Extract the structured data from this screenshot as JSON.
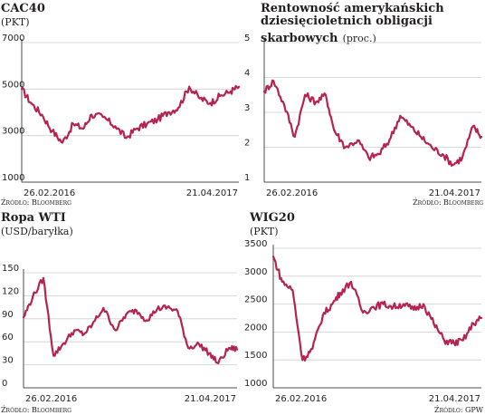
{
  "chart_data": [
    {
      "id": "cac40",
      "type": "line",
      "title": "CAC40",
      "subtitle": "(PKT)",
      "source": "Źródło: Bloomberg",
      "ylim": [
        1000,
        7000
      ],
      "yticks": [
        1000,
        3000,
        5000,
        7000
      ],
      "xlabels": [
        "26.02.2016",
        "21.04.2017"
      ],
      "grid": true,
      "color": "#b5234e",
      "x": [
        "2016-02-26",
        "2016-03-15",
        "2016-04-05",
        "2016-04-25",
        "2016-05-15",
        "2016-06-05",
        "2016-06-24",
        "2016-07-10",
        "2016-08-01",
        "2016-08-25",
        "2016-09-15",
        "2016-10-05",
        "2016-10-25",
        "2016-11-15",
        "2016-12-05",
        "2016-12-25",
        "2017-01-15",
        "2017-02-05",
        "2017-02-25",
        "2017-03-15",
        "2017-04-05",
        "2017-04-21"
      ],
      "values": [
        5000,
        4400,
        3900,
        3200,
        2700,
        3500,
        3300,
        3900,
        3800,
        3400,
        2900,
        3300,
        3500,
        3700,
        4000,
        4200,
        5100,
        4600,
        4400,
        4700,
        4900,
        5100
      ]
    },
    {
      "id": "us10y",
      "type": "line",
      "title": "Rentowność amerykańskich dziesięcioletnich obligacji skarbowych",
      "title_lines": [
        "Rentowność amerykańskich",
        "dziesięcioletnich obligacji"
      ],
      "title_last": "skarbowych",
      "subtitle": "(proc.)",
      "source": "Źródło: Bloomberg",
      "ylim": [
        1,
        5
      ],
      "yticks": [
        1,
        2,
        3,
        4,
        5
      ],
      "xlabels": [
        "26.02.2016",
        "21.04.2017"
      ],
      "grid": true,
      "color": "#b5234e",
      "x": [
        "2016-02-26",
        "2016-03-15",
        "2016-04-05",
        "2016-04-25",
        "2016-05-15",
        "2016-06-05",
        "2016-06-24",
        "2016-07-10",
        "2016-08-01",
        "2016-08-25",
        "2016-09-15",
        "2016-10-05",
        "2016-10-25",
        "2016-11-15",
        "2016-12-05",
        "2016-12-25",
        "2017-01-15",
        "2017-02-05",
        "2017-02-25",
        "2017-03-15",
        "2017-04-05",
        "2017-04-21"
      ],
      "values": [
        3.6,
        3.9,
        3.2,
        2.3,
        3.5,
        3.3,
        3.5,
        2.5,
        2.0,
        2.2,
        1.7,
        1.8,
        2.2,
        2.9,
        2.6,
        2.3,
        2.0,
        1.8,
        1.5,
        1.7,
        2.6,
        2.3
      ]
    },
    {
      "id": "wti",
      "type": "line",
      "title": "Ropa WTI",
      "subtitle": "(USD/baryłka)",
      "source": "Źródło: Bloomberg",
      "ylim": [
        0,
        150
      ],
      "yticks": [
        0,
        30,
        60,
        90,
        120,
        150
      ],
      "xlabels": [
        "26.02.2016",
        "21.04.2017"
      ],
      "grid": true,
      "color": "#b5234e",
      "x": [
        "2016-02-26",
        "2016-03-15",
        "2016-04-05",
        "2016-04-25",
        "2016-05-15",
        "2016-06-05",
        "2016-06-24",
        "2016-07-10",
        "2016-08-01",
        "2016-08-25",
        "2016-09-15",
        "2016-10-05",
        "2016-10-25",
        "2016-11-15",
        "2016-12-05",
        "2016-12-25",
        "2017-01-15",
        "2017-02-05",
        "2017-02-25",
        "2017-03-15",
        "2017-04-05",
        "2017-04-21"
      ],
      "values": [
        92,
        118,
        143,
        42,
        58,
        75,
        70,
        82,
        104,
        75,
        96,
        101,
        88,
        103,
        105,
        100,
        52,
        57,
        45,
        32,
        52,
        50
      ]
    },
    {
      "id": "wig20",
      "type": "line",
      "title": "WIG20",
      "subtitle": "(PKT)",
      "source": "Źródło: GPW",
      "ylim": [
        1000,
        3500
      ],
      "yticks": [
        1000,
        1500,
        2000,
        2500,
        3000,
        3500
      ],
      "xlabels": [
        "26.02.2016",
        "21.04.2017"
      ],
      "grid": true,
      "color": "#b5234e",
      "x": [
        "2016-02-26",
        "2016-03-15",
        "2016-04-05",
        "2016-04-25",
        "2016-05-15",
        "2016-06-05",
        "2016-06-24",
        "2016-07-10",
        "2016-08-01",
        "2016-08-25",
        "2016-09-15",
        "2016-10-05",
        "2016-10-25",
        "2016-11-15",
        "2016-12-05",
        "2016-12-25",
        "2017-01-15",
        "2017-02-05",
        "2017-02-25",
        "2017-03-15",
        "2017-04-05",
        "2017-04-21"
      ],
      "values": [
        3350,
        2900,
        2750,
        1500,
        1700,
        2300,
        2500,
        2700,
        2900,
        2350,
        2450,
        2500,
        2450,
        2500,
        2400,
        2500,
        2150,
        1850,
        1800,
        1850,
        2150,
        2250
      ]
    }
  ]
}
